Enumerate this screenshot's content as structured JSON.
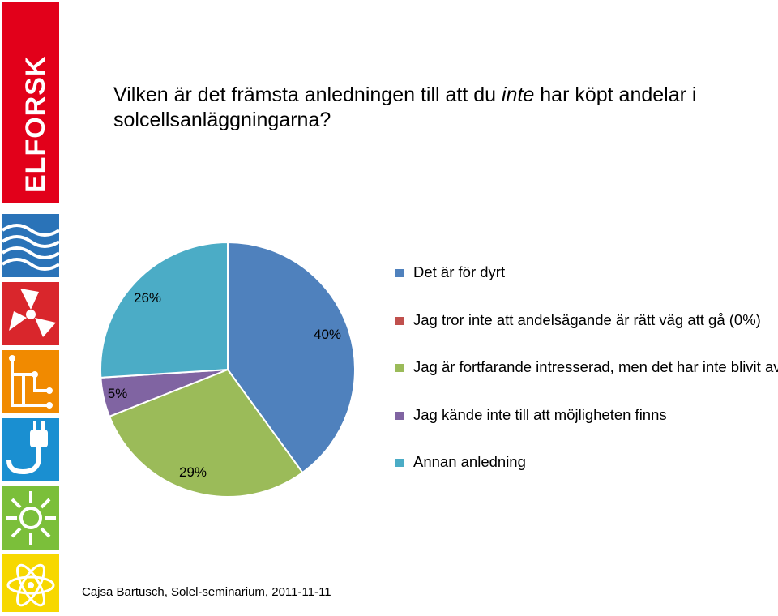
{
  "sidebar": {
    "logo_text": "ELFORSK",
    "tiles": [
      {
        "icon": "waves-icon",
        "color": "#2a73b8"
      },
      {
        "icon": "fan-icon",
        "color": "#d9262c"
      },
      {
        "icon": "circuit-icon",
        "color": "#f18a00"
      },
      {
        "icon": "power-plug-icon",
        "color": "#1a8fd1"
      },
      {
        "icon": "sun-icon",
        "color": "#7bbf3a"
      },
      {
        "icon": "atom-icon",
        "color": "#f7d800"
      }
    ]
  },
  "title": {
    "part1": "Vilken är det främsta anledningen till att du ",
    "emphasis": "inte",
    "part2": " har köpt andelar i solcellsanläggningarna?"
  },
  "chart_data": {
    "type": "pie",
    "slices": [
      {
        "label": "Det är för dyrt",
        "value": 40,
        "display": "40%",
        "color": "#4f81bd"
      },
      {
        "label": "Jag tror inte att andelsägande är rätt väg att gå (0%)",
        "value": 0,
        "display": "",
        "color": "#c0504d"
      },
      {
        "label": "Jag är fortfarande intresserad, men det har inte blivit av",
        "value": 29,
        "display": "29%",
        "color": "#9bbb59"
      },
      {
        "label": "Jag kände inte till att möjligheten finns",
        "value": 5,
        "display": "5%",
        "color": "#8064a2"
      },
      {
        "label": "Annan anledning",
        "value": 26,
        "display": "26%",
        "color": "#4bacc6"
      }
    ],
    "legend_position": "right"
  },
  "footer": {
    "text": "Cajsa Bartusch, Solel-seminarium,  2011-11-11"
  }
}
